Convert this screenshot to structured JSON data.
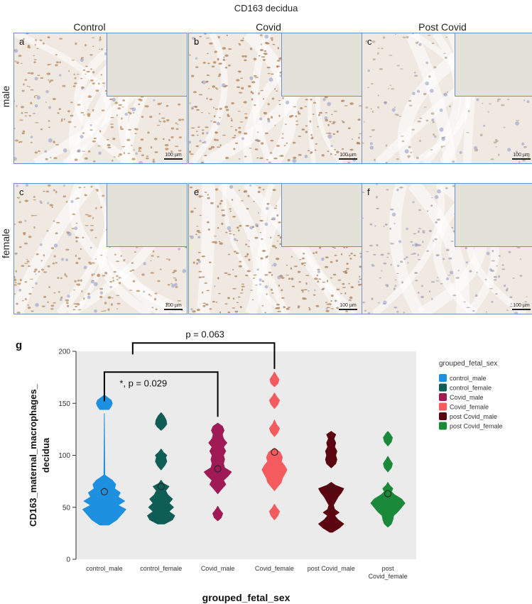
{
  "figure": {
    "title": "CD163 decidua",
    "columns": [
      "Control",
      "Covid",
      "Post Covid"
    ],
    "rows": [
      "male",
      "female"
    ],
    "panels": [
      {
        "letter": "a",
        "scale": "100 µm",
        "stain": "#b98a5e",
        "density": 0.9
      },
      {
        "letter": "b",
        "scale": "100 µm",
        "stain": "#b07f55",
        "density": 1.0
      },
      {
        "letter": "c",
        "scale": "100 µm",
        "stain": "#b9a58e",
        "density": 0.3
      },
      {
        "letter": "c",
        "scale": "100 µm",
        "stain": "#b88b60",
        "density": 0.8
      },
      {
        "letter": "e",
        "scale": "100 µm",
        "stain": "#ad7e55",
        "density": 1.0
      },
      {
        "letter": "f",
        "scale": "100 µm",
        "stain": "#a8a1b5",
        "density": 0.35
      }
    ]
  },
  "chart_data": {
    "type": "violin",
    "panel_label": "g",
    "title": "",
    "xlabel": "grouped_fetal_sex",
    "ylabel_lines": [
      "CD163_maternal_macrophages_",
      "decidua"
    ],
    "ylim": [
      0,
      200
    ],
    "yticks": [
      0,
      50,
      100,
      150,
      200
    ],
    "grid": false,
    "legend_title": "grouped_fetal_sex",
    "legend_placement": "right",
    "categories": [
      {
        "label_lines": [
          "control_male"
        ]
      },
      {
        "label_lines": [
          "control_female"
        ]
      },
      {
        "label_lines": [
          "Covid_male"
        ]
      },
      {
        "label_lines": [
          "Covid_female"
        ]
      },
      {
        "label_lines": [
          "post Covid_male"
        ]
      },
      {
        "label_lines": [
          "post",
          "Covid_female"
        ]
      }
    ],
    "series": [
      {
        "name": "control_male",
        "color": "#1e90e0",
        "mean": 65,
        "profile": [
          [
            33,
            0.2
          ],
          [
            38,
            0.55
          ],
          [
            43,
            0.75
          ],
          [
            48,
            0.95
          ],
          [
            52,
            0.6
          ],
          [
            56,
            0.9
          ],
          [
            60,
            0.6
          ],
          [
            64,
            0.7
          ],
          [
            68,
            0.45
          ],
          [
            72,
            0.5
          ],
          [
            76,
            0.35
          ],
          [
            79,
            0.15
          ],
          [
            81,
            0.02
          ],
          [
            140,
            0
          ],
          [
            144,
            0.2
          ],
          [
            147,
            0.3
          ],
          [
            150,
            0.35
          ],
          [
            153,
            0.3
          ],
          [
            156,
            0.12
          ],
          [
            158,
            0
          ]
        ]
      },
      {
        "name": "control_female",
        "color": "#0e5e56",
        "mean": 70,
        "profile": [
          [
            34,
            0.15
          ],
          [
            38,
            0.5
          ],
          [
            42,
            0.6
          ],
          [
            46,
            0.35
          ],
          [
            50,
            0.55
          ],
          [
            54,
            0.35
          ],
          [
            58,
            0.5
          ],
          [
            62,
            0.3
          ],
          [
            66,
            0.2
          ],
          [
            70,
            0.35
          ],
          [
            73,
            0.1
          ],
          [
            76,
            0
          ],
          [
            86,
            0
          ],
          [
            90,
            0.15
          ],
          [
            94,
            0.25
          ],
          [
            98,
            0.2
          ],
          [
            100,
            0.25
          ],
          [
            103,
            0.1
          ],
          [
            106,
            0
          ],
          [
            124,
            0
          ],
          [
            127,
            0.15
          ],
          [
            130,
            0.25
          ],
          [
            134,
            0.22
          ],
          [
            138,
            0.12
          ],
          [
            141,
            0
          ]
        ]
      },
      {
        "name": "Covid_male",
        "color": "#a01a55",
        "mean": 87,
        "profile": [
          [
            37,
            0
          ],
          [
            40,
            0.15
          ],
          [
            44,
            0.22
          ],
          [
            48,
            0.08
          ],
          [
            51,
            0
          ],
          [
            63,
            0
          ],
          [
            67,
            0.15
          ],
          [
            72,
            0.35
          ],
          [
            76,
            0.25
          ],
          [
            80,
            0.45
          ],
          [
            84,
            0.6
          ],
          [
            88,
            0.3
          ],
          [
            92,
            0.25
          ],
          [
            96,
            0.3
          ],
          [
            100,
            0.25
          ],
          [
            104,
            0.35
          ],
          [
            108,
            0.25
          ],
          [
            112,
            0.4
          ],
          [
            116,
            0.25
          ],
          [
            120,
            0.2
          ],
          [
            124,
            0.28
          ],
          [
            128,
            0.2
          ],
          [
            131,
            0
          ]
        ]
      },
      {
        "name": "Covid_female",
        "color": "#f45b5f",
        "mean": 103,
        "profile": [
          [
            38,
            0
          ],
          [
            42,
            0.15
          ],
          [
            46,
            0.22
          ],
          [
            50,
            0.08
          ],
          [
            53,
            0
          ],
          [
            66,
            0
          ],
          [
            70,
            0.15
          ],
          [
            74,
            0.3
          ],
          [
            78,
            0.35
          ],
          [
            82,
            0.45
          ],
          [
            86,
            0.55
          ],
          [
            90,
            0.45
          ],
          [
            94,
            0.3
          ],
          [
            98,
            0.35
          ],
          [
            103,
            0.25
          ],
          [
            107,
            0
          ],
          [
            118,
            0
          ],
          [
            122,
            0.15
          ],
          [
            126,
            0.22
          ],
          [
            130,
            0.08
          ],
          [
            134,
            0
          ],
          [
            145,
            0
          ],
          [
            149,
            0.15
          ],
          [
            153,
            0.22
          ],
          [
            157,
            0.08
          ],
          [
            160,
            0
          ],
          [
            166,
            0
          ],
          [
            169,
            0.15
          ],
          [
            173,
            0.2
          ],
          [
            177,
            0.08
          ],
          [
            180,
            0
          ]
        ]
      },
      {
        "name": "post Covid_male",
        "color": "#5a0510",
        "mean": 68,
        "profile": [
          [
            26,
            0.05
          ],
          [
            30,
            0.35
          ],
          [
            34,
            0.55
          ],
          [
            38,
            0.3
          ],
          [
            42,
            0.15
          ],
          [
            45,
            0.35
          ],
          [
            48,
            0.15
          ],
          [
            52,
            0.1
          ],
          [
            56,
            0.2
          ],
          [
            60,
            0.3
          ],
          [
            64,
            0.45
          ],
          [
            68,
            0.55
          ],
          [
            71,
            0.2
          ],
          [
            74,
            0
          ],
          [
            88,
            0
          ],
          [
            92,
            0.2
          ],
          [
            96,
            0.25
          ],
          [
            100,
            0.2
          ],
          [
            104,
            0.25
          ],
          [
            108,
            0.15
          ],
          [
            112,
            0.2
          ],
          [
            116,
            0.12
          ],
          [
            120,
            0.2
          ],
          [
            123,
            0
          ]
        ]
      },
      {
        "name": "post Covid_female",
        "color": "#1a8a3a",
        "mean": 63,
        "profile": [
          [
            31,
            0
          ],
          [
            34,
            0.15
          ],
          [
            38,
            0.22
          ],
          [
            42,
            0.25
          ],
          [
            46,
            0.45
          ],
          [
            50,
            0.6
          ],
          [
            54,
            0.75
          ],
          [
            58,
            0.6
          ],
          [
            62,
            0.3
          ],
          [
            65,
            0.15
          ],
          [
            68,
            0.22
          ],
          [
            71,
            0.08
          ],
          [
            74,
            0
          ],
          [
            84,
            0
          ],
          [
            88,
            0.15
          ],
          [
            92,
            0.2
          ],
          [
            96,
            0.08
          ],
          [
            99,
            0
          ],
          [
            109,
            0
          ],
          [
            113,
            0.15
          ],
          [
            117,
            0.2
          ],
          [
            121,
            0.08
          ],
          [
            123,
            0
          ]
        ]
      }
    ],
    "annotations": [
      {
        "text": "*, p = 0.029",
        "from": 0,
        "to": 2,
        "level": 180,
        "bottom_left": 152,
        "bottom_right": 137
      },
      {
        "text": "p = 0.063",
        "from": 0.5,
        "to": 3,
        "level": 208,
        "bottom_left": 197,
        "bottom_right": 183
      }
    ]
  }
}
